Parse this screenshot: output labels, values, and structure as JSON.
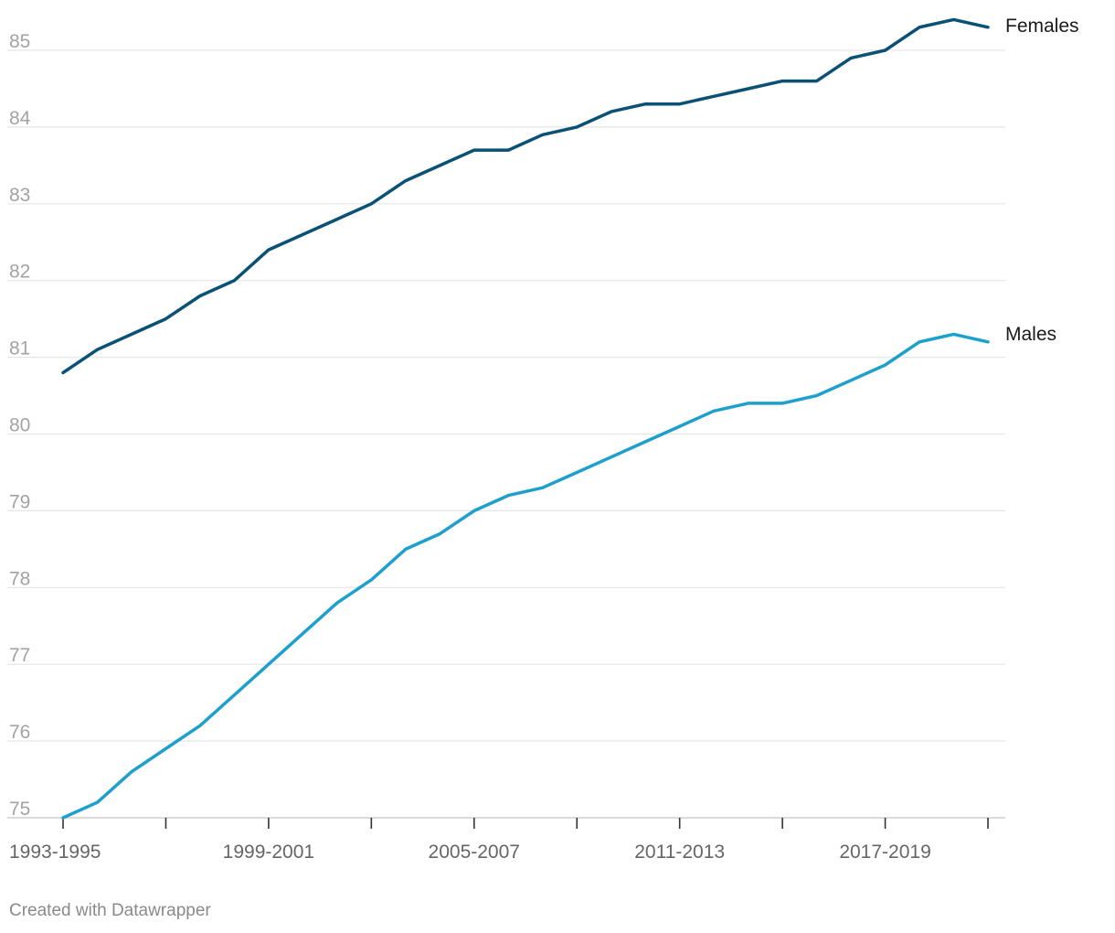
{
  "chart_data": {
    "type": "line",
    "x": [
      "1993-1995",
      "1994-1996",
      "1995-1997",
      "1996-1998",
      "1997-1999",
      "1998-2000",
      "1999-2001",
      "2000-2002",
      "2001-2003",
      "2002-2004",
      "2003-2005",
      "2004-2006",
      "2005-2007",
      "2006-2008",
      "2007-2009",
      "2008-2010",
      "2009-2011",
      "2010-2012",
      "2011-2013",
      "2012-2014",
      "2013-2015",
      "2014-2016",
      "2015-2017",
      "2016-2018",
      "2017-2019",
      "2018-2020",
      "2019-2021",
      "2020-2022"
    ],
    "x_tick_labels": [
      "1993-1995",
      "1999-2001",
      "2005-2007",
      "2011-2013",
      "2017-2019"
    ],
    "y_ticks": [
      75,
      76,
      77,
      78,
      79,
      80,
      81,
      82,
      83,
      84,
      85
    ],
    "ylim": [
      75,
      85.4
    ],
    "grid": true,
    "legend": "direct labels at line ends",
    "series": [
      {
        "name": "Females",
        "color": "#0b5075",
        "values": [
          80.8,
          81.1,
          81.3,
          81.5,
          81.8,
          82.0,
          82.4,
          82.6,
          82.8,
          83.0,
          83.3,
          83.5,
          83.7,
          83.7,
          83.9,
          84.0,
          84.2,
          84.3,
          84.3,
          84.4,
          84.5,
          84.6,
          84.6,
          84.9,
          85.0,
          85.3,
          85.4,
          85.3
        ]
      },
      {
        "name": "Males",
        "color": "#1fa0cc",
        "values": [
          75.0,
          75.2,
          75.6,
          75.9,
          76.2,
          76.6,
          77.0,
          77.4,
          77.8,
          78.1,
          78.5,
          78.7,
          79.0,
          79.2,
          79.3,
          79.5,
          79.7,
          79.9,
          80.1,
          80.3,
          80.4,
          80.4,
          80.5,
          80.7,
          80.9,
          81.2,
          81.3,
          81.2
        ]
      }
    ]
  },
  "credit": "Created with Datawrapper"
}
